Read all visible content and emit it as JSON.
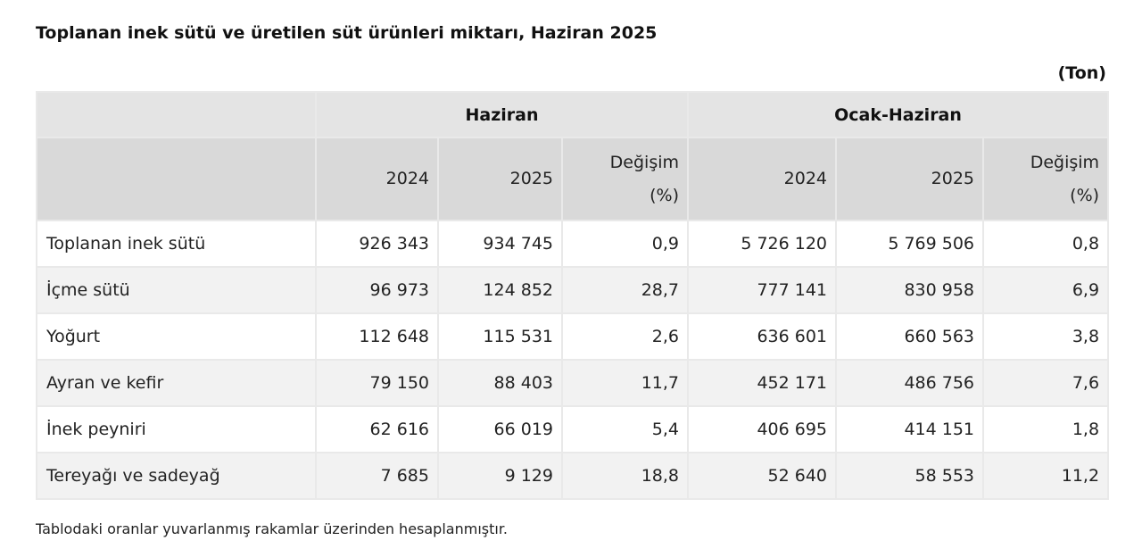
{
  "title": "Toplanan inek sütü ve üretilen süt ürünleri miktarı, Haziran 2025",
  "unit": "(Ton)",
  "table": {
    "group_headers": [
      {
        "label": "Haziran"
      },
      {
        "label": "Ocak-Haziran"
      }
    ],
    "sub_headers": [
      {
        "year": "2024"
      },
      {
        "year": "2025"
      },
      {
        "line1": "Değişim",
        "line2": "(%)"
      },
      {
        "year": "2024"
      },
      {
        "year": "2025"
      },
      {
        "line1": "Değişim",
        "line2": "(%)"
      }
    ],
    "rows": [
      {
        "label": "Toplanan inek sütü",
        "h2024": "926 343",
        "h2025": "934 745",
        "hchg": "0,9",
        "o2024": "5 726 120",
        "o2025": "5 769 506",
        "ochg": "0,8"
      },
      {
        "label": "İçme sütü",
        "h2024": "96 973",
        "h2025": "124 852",
        "hchg": "28,7",
        "o2024": "777 141",
        "o2025": "830 958",
        "ochg": "6,9"
      },
      {
        "label": "Yoğurt",
        "h2024": "112 648",
        "h2025": "115 531",
        "hchg": "2,6",
        "o2024": "636 601",
        "o2025": "660 563",
        "ochg": "3,8"
      },
      {
        "label": "Ayran ve kefir",
        "h2024": "79 150",
        "h2025": "88 403",
        "hchg": "11,7",
        "o2024": "452 171",
        "o2025": "486 756",
        "ochg": "7,6"
      },
      {
        "label": "İnek peyniri",
        "h2024": "62 616",
        "h2025": "66 019",
        "hchg": "5,4",
        "o2024": "406 695",
        "o2025": "414 151",
        "ochg": "1,8"
      },
      {
        "label": "Tereyağı ve sadeyağ",
        "h2024": "7 685",
        "h2025": "9 129",
        "hchg": "18,8",
        "o2024": "52 640",
        "o2025": "58 553",
        "ochg": "11,2"
      }
    ]
  },
  "footnote": "Tablodaki oranlar yuvarlanmış rakamlar üzerinden hesaplanmıştır.",
  "colors": {
    "header_group_bg": "#e4e4e4",
    "header_sub_bg": "#d9d9d9",
    "row_alt_bg": "#f2f2f2",
    "border": "#e9e9e9"
  }
}
